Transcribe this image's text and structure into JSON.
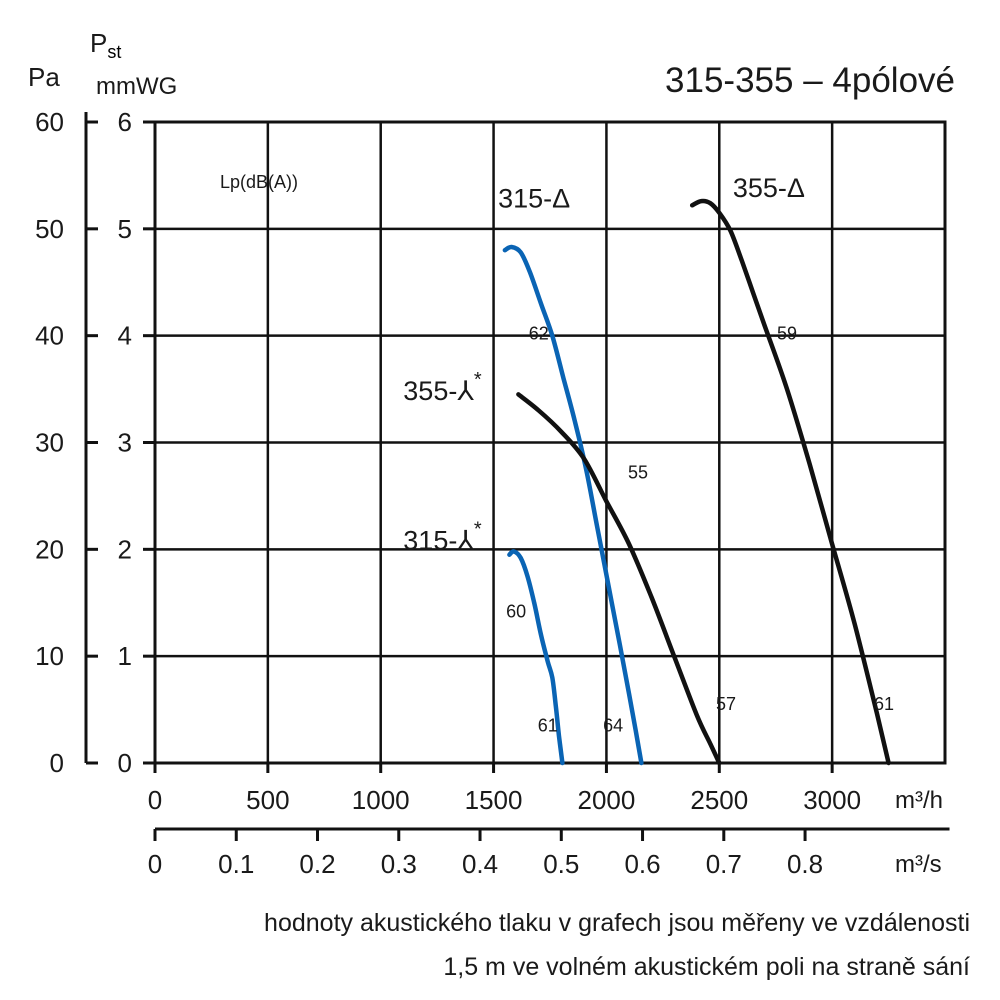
{
  "chart_data": {
    "type": "line",
    "title": "315-355 – 4pólové",
    "axis_label_pa": "Pa",
    "axis_label_pst_main": "P",
    "axis_label_pst_sub": "st",
    "axis_label_mmwg": "mmWG",
    "noise_label": "Lp(dB(A))",
    "x_unit_flow_h": "m³/h",
    "x_unit_flow_s": "m³/s",
    "xlim": [
      0,
      3500
    ],
    "ylim": [
      0,
      6
    ],
    "grid": true,
    "x_ticks": [
      "0",
      "500",
      "1000",
      "1500",
      "2000",
      "2500",
      "3000"
    ],
    "x_tick_values": [
      0,
      500,
      1000,
      1500,
      2000,
      2500,
      3000
    ],
    "ms_ticks": [
      "0",
      "0.1",
      "0.2",
      "0.3",
      "0.4",
      "0.5",
      "0.6",
      "0.7",
      "0.8"
    ],
    "ms_tick_values": [
      0,
      0.1,
      0.2,
      0.3,
      0.4,
      0.5,
      0.6,
      0.7,
      0.8
    ],
    "y_ticks_mmwg": [
      "0",
      "1",
      "2",
      "3",
      "4",
      "5",
      "6"
    ],
    "y_ticks_pa": [
      "0",
      "10",
      "20",
      "30",
      "40",
      "50",
      "60"
    ],
    "series": [
      {
        "name": "315-Δ",
        "color": "#0a64b4",
        "x": [
          1550,
          1580,
          1620,
          1660,
          1710,
          1760,
          1810,
          1860,
          1910,
          1960,
          2010,
          2060,
          2100,
          2130,
          2155
        ],
        "y": [
          4.8,
          4.83,
          4.78,
          4.6,
          4.3,
          4.0,
          3.6,
          3.2,
          2.75,
          2.2,
          1.65,
          1.1,
          0.65,
          0.3,
          0.0
        ],
        "noise_labels": [
          {
            "text": "62",
            "x": 1700,
            "y": 4.02
          },
          {
            "text": "64",
            "x": 2030,
            "y": 0.35
          }
        ]
      },
      {
        "name": "315-⅄*",
        "color": "#0a64b4",
        "x": [
          1570,
          1590,
          1620,
          1650,
          1680,
          1710,
          1740,
          1760,
          1775,
          1790,
          1805
        ],
        "y": [
          1.95,
          1.98,
          1.92,
          1.75,
          1.5,
          1.2,
          0.95,
          0.8,
          0.55,
          0.25,
          0.0
        ],
        "noise_labels": [
          {
            "text": "60",
            "x": 1600,
            "y": 1.42
          },
          {
            "text": "61",
            "x": 1740,
            "y": 0.35
          }
        ]
      },
      {
        "name": "355-⅄*",
        "color": "#111111",
        "x": [
          1610,
          1700,
          1800,
          1900,
          2000,
          2100,
          2200,
          2300,
          2400,
          2460,
          2500
        ],
        "y": [
          3.45,
          3.3,
          3.1,
          2.85,
          2.45,
          2.05,
          1.55,
          1.0,
          0.45,
          0.18,
          0.0
        ],
        "noise_labels": [
          {
            "text": "55",
            "x": 2140,
            "y": 2.72
          },
          {
            "text": "57",
            "x": 2530,
            "y": 0.55
          }
        ]
      },
      {
        "name": "355-Δ",
        "color": "#111111",
        "x": [
          2380,
          2420,
          2460,
          2500,
          2550,
          2600,
          2650,
          2700,
          2800,
          2900,
          3000,
          3100,
          3200,
          3250
        ],
        "y": [
          5.22,
          5.26,
          5.24,
          5.15,
          4.98,
          4.7,
          4.4,
          4.1,
          3.5,
          2.8,
          2.05,
          1.3,
          0.45,
          0.0
        ],
        "noise_labels": [
          {
            "text": "59",
            "x": 2800,
            "y": 4.02
          },
          {
            "text": "61",
            "x": 3230,
            "y": 0.55
          }
        ]
      }
    ]
  },
  "series_labels": [
    {
      "main": "315-Δ",
      "star": "",
      "x": 1520,
      "y": 5.2
    },
    {
      "main": "355-Δ",
      "star": "",
      "x": 2560,
      "y": 5.3
    },
    {
      "main": "355-⅄",
      "star": "*",
      "x": 1100,
      "y": 3.4
    },
    {
      "main": "315-⅄",
      "star": "*",
      "x": 1100,
      "y": 2.0
    }
  ],
  "caption": {
    "line1": "hodnoty akustického tlaku v grafech jsou měřeny ve vzdálenosti",
    "line2": "1,5 m ve volném akustickém poli na straně sání"
  }
}
